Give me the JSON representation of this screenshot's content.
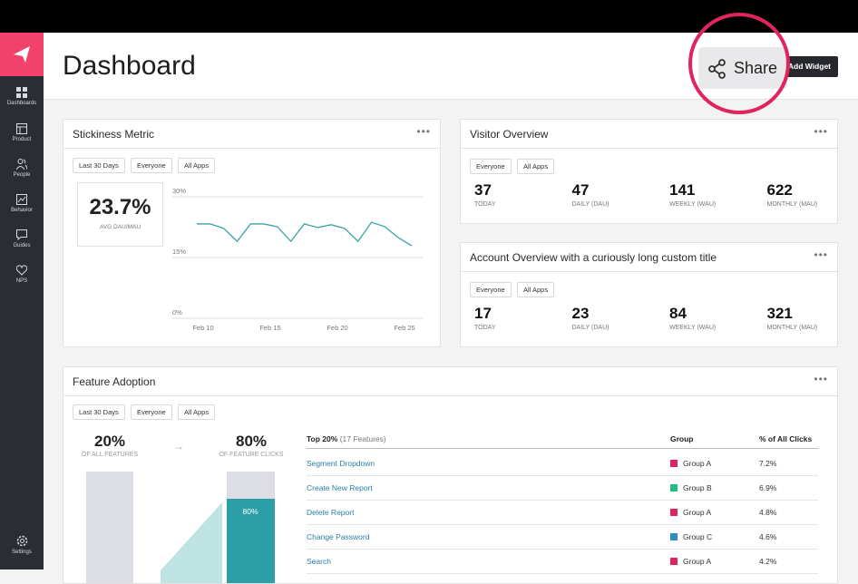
{
  "sidebar": {
    "items": [
      "Dashboards",
      "Product",
      "People",
      "Behavior",
      "Guides",
      "NPS"
    ],
    "settings": "Settings"
  },
  "header": {
    "title": "Dashboard",
    "share": "Share",
    "add_widget": "Add Widget"
  },
  "stickiness": {
    "title": "Stickiness Metric",
    "filters": [
      "Last 30 Days",
      "Everyone",
      "All Apps"
    ],
    "metric": "23.7%",
    "metric_label": "AVG DAU/MAU",
    "chart": {
      "type": "line",
      "color": "#3aa3a8",
      "values": [
        23.3,
        23.3,
        22.2,
        19.0,
        23.3,
        23.3,
        22.6,
        19.0,
        23.3,
        22.4,
        23.1,
        22.2,
        19.0,
        23.7,
        22.6,
        19.9,
        17.9
      ],
      "ylim": [
        0,
        30
      ],
      "yticks": [
        {
          "value": 30,
          "label": "30%"
        },
        {
          "value": 15,
          "label": "15%"
        },
        {
          "value": 0,
          "label": "0%"
        }
      ],
      "x_labels": [
        "Feb 10",
        "Feb 15",
        "Feb 20",
        "Feb 25"
      ],
      "grid": true
    }
  },
  "visitor_overview": {
    "title": "Visitor Overview",
    "filters": [
      "Everyone",
      "All Apps"
    ],
    "stats": [
      {
        "value": "37",
        "label": "TODAY"
      },
      {
        "value": "47",
        "label": "DAILY (DAU)"
      },
      {
        "value": "141",
        "label": "WEEKLY (WAU)"
      },
      {
        "value": "622",
        "label": "MONTHLY (MAU)"
      }
    ]
  },
  "account_overview": {
    "title": "Account Overview with a curiously long custom title",
    "filters": [
      "Everyone",
      "All Apps"
    ],
    "stats": [
      {
        "value": "17",
        "label": "TODAY"
      },
      {
        "value": "23",
        "label": "DAILY (DAU)"
      },
      {
        "value": "84",
        "label": "WEEKLY (WAU)"
      },
      {
        "value": "321",
        "label": "MONTHLY (MAU)"
      }
    ]
  },
  "feature_adoption": {
    "title": "Feature Adoption",
    "filters": [
      "Last 30 Days",
      "Everyone",
      "All Apps"
    ],
    "features_share": "20%",
    "features_label": "OF ALL FEATURES",
    "clicks_share": "80%",
    "clicks_label": "OF FEATURE CLICKS",
    "bar_label": "80%",
    "table": {
      "header": {
        "top": "Top 20%",
        "count": "(17 Features)",
        "group": "Group",
        "clicks": "% of All Clicks"
      },
      "rows": [
        {
          "name": "Segment Dropdown",
          "group": "Group A",
          "color": "#e0245e",
          "clicks": "7.2%"
        },
        {
          "name": "Create New Report",
          "group": "Group B",
          "color": "#1fbf84",
          "clicks": "6.9%"
        },
        {
          "name": "Delete Report",
          "group": "Group A",
          "color": "#e0245e",
          "clicks": "4.8%"
        },
        {
          "name": "Change Password",
          "group": "Group C",
          "color": "#2b8fc7",
          "clicks": "4.6%"
        },
        {
          "name": "Search",
          "group": "Group A",
          "color": "#e0245e",
          "clicks": "4.2%"
        }
      ]
    }
  }
}
